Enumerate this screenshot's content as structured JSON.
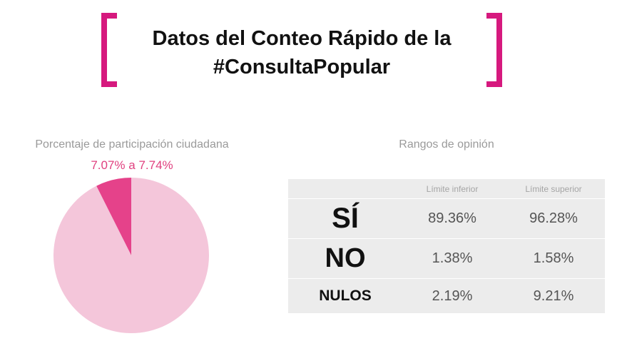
{
  "title": {
    "line1": "Datos del Conteo Rápido de la",
    "line2": "#ConsultaPopular"
  },
  "colors": {
    "accent": "#d6197e",
    "pie_light": "#f4c6da",
    "pie_dark": "#e5428a",
    "range_text": "#e0407f"
  },
  "pie_section": {
    "heading": "Porcentaje de participación ciudadana",
    "range_label": "7.07% a 7.74%"
  },
  "table_section": {
    "heading": "Rangos de opinión",
    "col_lower": "Límite inferior",
    "col_upper": "Límite superior",
    "rows": [
      {
        "label": "SÍ",
        "lower": "89.36%",
        "upper": "96.28%"
      },
      {
        "label": "NO",
        "lower": "1.38%",
        "upper": "1.58%"
      },
      {
        "label": "NULOS",
        "lower": "2.19%",
        "upper": "9.21%"
      }
    ]
  },
  "chart_data": [
    {
      "type": "pie",
      "title": "Porcentaje de participación ciudadana",
      "annotation": "7.07% a 7.74%",
      "slices": [
        {
          "value": 7.4,
          "color": "#e5428a"
        },
        {
          "value": 92.6,
          "color": "#f4c6da"
        }
      ]
    },
    {
      "type": "table",
      "title": "Rangos de opinión",
      "columns": [
        "",
        "Límite inferior",
        "Límite superior"
      ],
      "rows": [
        [
          "SÍ",
          "89.36%",
          "96.28%"
        ],
        [
          "NO",
          "1.38%",
          "1.58%"
        ],
        [
          "NULOS",
          "2.19%",
          "9.21%"
        ]
      ]
    }
  ]
}
